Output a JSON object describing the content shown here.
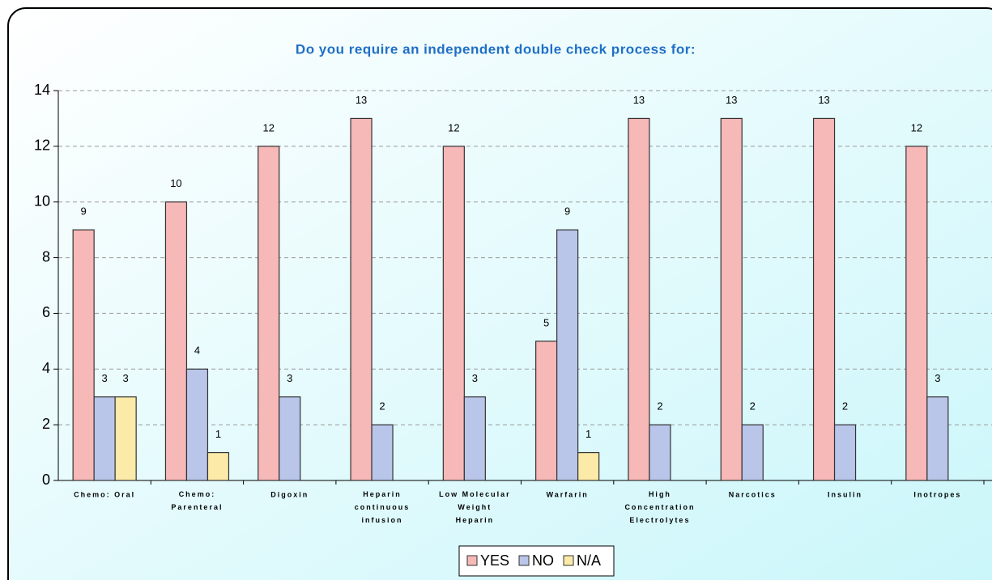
{
  "chart_data": {
    "type": "bar",
    "title": "Do you require an independent double check process for:",
    "categories": [
      "Chemo: Oral",
      "Chemo:\nParenteral",
      "Digoxin",
      "Heparin\ncontinuous\ninfusion",
      "Low Molecular\nWeight\nHeparin",
      "Warfarin",
      "High\nConcentration\nElectrolytes",
      "Narcotics",
      "Insulin",
      "Inotropes"
    ],
    "series": [
      {
        "name": "YES",
        "color": "#f7b8b8",
        "values": [
          9,
          10,
          12,
          13,
          12,
          5,
          13,
          13,
          13,
          12
        ]
      },
      {
        "name": "NO",
        "color": "#b9c6ea",
        "values": [
          3,
          4,
          3,
          2,
          3,
          9,
          2,
          2,
          2,
          3
        ]
      },
      {
        "name": "N/A",
        "color": "#fbeaa8",
        "values": [
          3,
          1,
          null,
          null,
          null,
          1,
          null,
          null,
          null,
          null
        ]
      }
    ],
    "ylim": [
      0,
      14
    ],
    "yticks": [
      0,
      2,
      4,
      6,
      8,
      10,
      12,
      14
    ],
    "grid": true,
    "legend": "bottom"
  }
}
